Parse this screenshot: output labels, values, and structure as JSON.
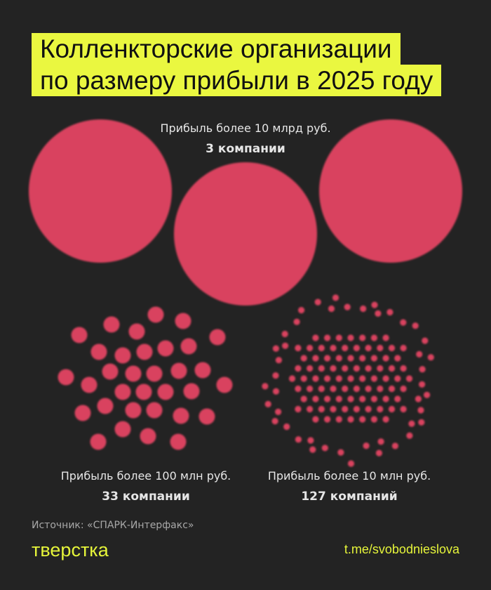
{
  "title": {
    "line1": "Колленкторские организации",
    "line2": "по размеру прибыли в 2025 году"
  },
  "groups": [
    {
      "label": "Прибыль более 10 млрд руб.",
      "count_label": "3 компании",
      "count": 3
    },
    {
      "label": "Прибыль более 100 млн руб.",
      "count_label": "33 компании",
      "count": 33
    },
    {
      "label": "Прибыль более 10 млн руб.",
      "count_label": "127 компаний",
      "count": 127
    }
  ],
  "source": "Источник: «СПАРК-Интерфакс»",
  "logo": "тверстка",
  "link": "t.me/svobodnieslova",
  "colors": {
    "background": "#232323",
    "accent": "#eaf740",
    "dot": "#d9425e"
  },
  "chart_data": {
    "type": "bubble",
    "categories": [
      "Прибыль более 10 млрд руб.",
      "Прибыль более 100 млн руб.",
      "Прибыль более 10 млн руб."
    ],
    "values": [
      3,
      33,
      127
    ]
  }
}
